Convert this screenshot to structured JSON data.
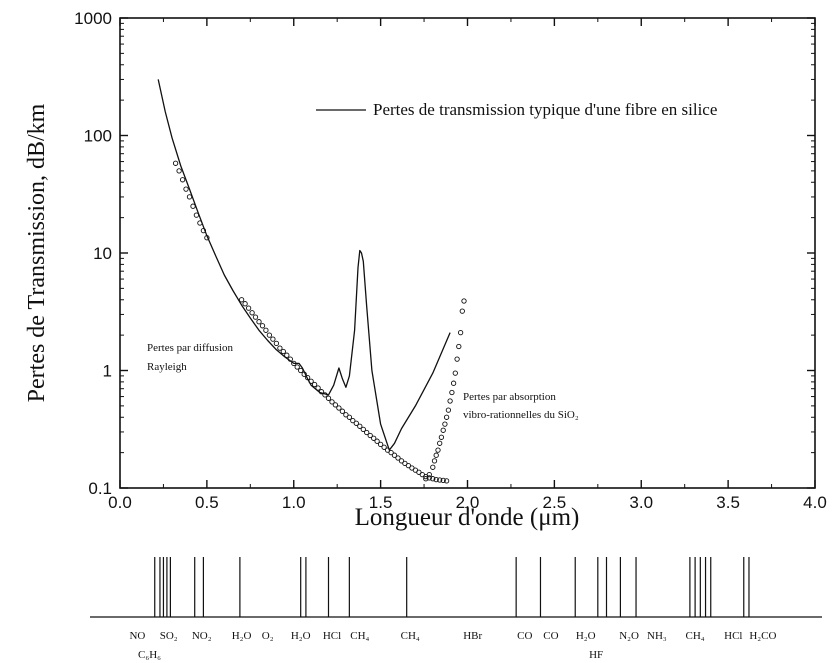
{
  "chart_data": {
    "type": "line",
    "x_label": "Longueur d'onde (μm)",
    "y_label": "Pertes de Transmission, dB/km",
    "xlim": [
      0.0,
      4.0
    ],
    "ylim": [
      0.1,
      1000
    ],
    "y_scale": "log",
    "x_ticks": [
      "0.0",
      "0.5",
      "1.0",
      "1.5",
      "2.0",
      "2.5",
      "3.0",
      "3.5",
      "4.0"
    ],
    "y_ticks": [
      "0.1",
      "1",
      "10",
      "100",
      "1000"
    ],
    "legend": {
      "label": "Pertes de transmission typique d'une fibre en silice",
      "placement": "top-right"
    },
    "annotations": {
      "rayleigh": [
        "Pertes par diffusion",
        "Rayleigh"
      ],
      "absorption": [
        "Pertes par absorption",
        "vibro-rationnelles du SiO₂"
      ]
    },
    "series": [
      {
        "name": "Pertes de transmission typique d'une fibre en silice",
        "style": "solid",
        "x": [
          0.22,
          0.26,
          0.3,
          0.35,
          0.4,
          0.45,
          0.5,
          0.55,
          0.6,
          0.65,
          0.7,
          0.75,
          0.8,
          0.85,
          0.9,
          0.95,
          1.0,
          1.03,
          1.05,
          1.08,
          1.1,
          1.15,
          1.2,
          1.23,
          1.26,
          1.28,
          1.3,
          1.32,
          1.35,
          1.37,
          1.38,
          1.39,
          1.4,
          1.42,
          1.45,
          1.5,
          1.55,
          1.58,
          1.62,
          1.7,
          1.8,
          1.9
        ],
        "y": [
          300,
          160,
          95,
          55,
          35,
          22,
          14,
          9.5,
          6.5,
          4.8,
          3.6,
          2.8,
          2.2,
          1.8,
          1.5,
          1.3,
          1.15,
          1.15,
          1.05,
          0.85,
          0.75,
          0.65,
          0.62,
          0.75,
          1.05,
          0.85,
          0.72,
          0.9,
          2.2,
          7.5,
          10.5,
          10,
          8.5,
          3.5,
          1.0,
          0.35,
          0.21,
          0.24,
          0.32,
          0.5,
          0.95,
          2.1
        ]
      },
      {
        "name": "Pertes par diffusion Rayleigh",
        "style": "circles",
        "x": [
          0.32,
          0.34,
          0.36,
          0.38,
          0.4,
          0.42,
          0.44,
          0.46,
          0.48,
          0.5,
          0.7,
          0.72,
          0.74,
          0.76,
          0.78,
          0.8,
          0.82,
          0.84,
          0.86,
          0.88,
          0.9,
          0.92,
          0.94,
          0.96,
          0.98,
          1.0,
          1.02,
          1.04,
          1.06,
          1.08,
          1.1,
          1.12,
          1.14,
          1.16,
          1.18,
          1.2,
          1.22,
          1.24,
          1.26,
          1.28,
          1.3,
          1.32,
          1.34,
          1.36,
          1.38,
          1.4,
          1.42,
          1.44,
          1.46,
          1.48,
          1.5,
          1.52,
          1.54,
          1.56,
          1.58,
          1.6,
          1.62,
          1.64,
          1.66,
          1.68,
          1.7,
          1.72,
          1.74,
          1.76,
          1.78,
          1.8,
          1.82,
          1.84,
          1.86,
          1.88
        ],
        "y": [
          58,
          50,
          42,
          35,
          30,
          25,
          21,
          18,
          15.5,
          13.5,
          4.0,
          3.7,
          3.4,
          3.1,
          2.85,
          2.6,
          2.4,
          2.2,
          2.0,
          1.85,
          1.7,
          1.55,
          1.45,
          1.35,
          1.25,
          1.15,
          1.07,
          1.0,
          0.93,
          0.87,
          0.81,
          0.76,
          0.71,
          0.66,
          0.62,
          0.58,
          0.54,
          0.51,
          0.48,
          0.45,
          0.42,
          0.4,
          0.375,
          0.355,
          0.335,
          0.315,
          0.297,
          0.28,
          0.265,
          0.25,
          0.235,
          0.222,
          0.21,
          0.2,
          0.19,
          0.18,
          0.17,
          0.162,
          0.155,
          0.148,
          0.142,
          0.136,
          0.13,
          0.125,
          0.122,
          0.12,
          0.118,
          0.117,
          0.116,
          0.115
        ]
      },
      {
        "name": "Pertes par absorption vibro-rationnelles du SiO₂",
        "style": "circles",
        "x": [
          1.76,
          1.78,
          1.8,
          1.81,
          1.82,
          1.83,
          1.84,
          1.85,
          1.86,
          1.87,
          1.88,
          1.89,
          1.9,
          1.91,
          1.92,
          1.93,
          1.94,
          1.95,
          1.96,
          1.97,
          1.98
        ],
        "y": [
          0.12,
          0.13,
          0.15,
          0.17,
          0.19,
          0.21,
          0.24,
          0.27,
          0.31,
          0.35,
          0.4,
          0.46,
          0.55,
          0.65,
          0.78,
          0.95,
          1.25,
          1.6,
          2.1,
          3.2,
          3.9
        ]
      }
    ]
  },
  "absorption_bands": {
    "lines_um": [
      0.2,
      0.23,
      0.25,
      0.27,
      0.29,
      0.43,
      0.48,
      0.69,
      1.04,
      1.07,
      1.2,
      1.32,
      1.65,
      2.28,
      2.42,
      2.62,
      2.75,
      2.8,
      2.88,
      2.97,
      3.28,
      3.31,
      3.34,
      3.37,
      3.4,
      3.59,
      3.62
    ],
    "labels": [
      {
        "text": "NO",
        "x": 0.1,
        "row": 0
      },
      {
        "text": "C₆H₆",
        "x": 0.17,
        "row": 1
      },
      {
        "text": "SO₂",
        "x": 0.28,
        "row": 0
      },
      {
        "text": "NO₂",
        "x": 0.47,
        "row": 0
      },
      {
        "text": "H₂O",
        "x": 0.7,
        "row": 0
      },
      {
        "text": "O₂",
        "x": 0.85,
        "row": 0
      },
      {
        "text": "H₂O",
        "x": 1.04,
        "row": 0
      },
      {
        "text": "HCl",
        "x": 1.22,
        "row": 0
      },
      {
        "text": "CH₄",
        "x": 1.38,
        "row": 0
      },
      {
        "text": "CH₄",
        "x": 1.67,
        "row": 0
      },
      {
        "text": "HBr",
        "x": 2.03,
        "row": 0
      },
      {
        "text": "CO",
        "x": 2.33,
        "row": 0
      },
      {
        "text": "CO",
        "x": 2.48,
        "row": 0
      },
      {
        "text": "H₂O",
        "x": 2.68,
        "row": 0
      },
      {
        "text": "HF",
        "x": 2.74,
        "row": 1
      },
      {
        "text": "N₂O",
        "x": 2.93,
        "row": 0
      },
      {
        "text": "NH₃",
        "x": 3.09,
        "row": 0
      },
      {
        "text": "CH₄",
        "x": 3.31,
        "row": 0
      },
      {
        "text": "HCl",
        "x": 3.53,
        "row": 0
      },
      {
        "text": "H₂CO",
        "x": 3.7,
        "row": 0
      }
    ]
  }
}
